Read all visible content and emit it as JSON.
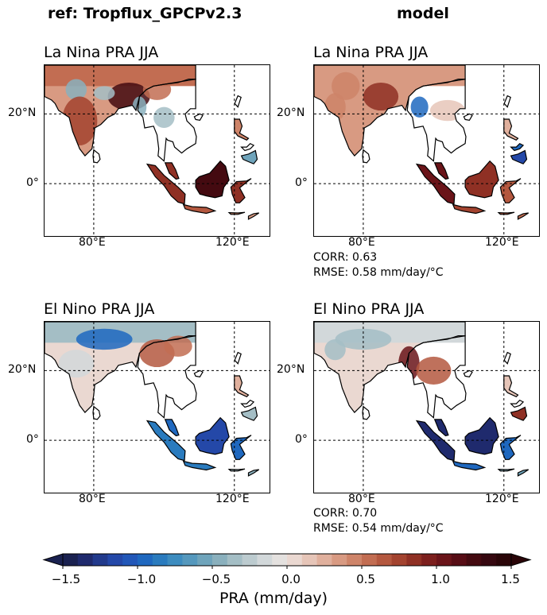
{
  "headers": {
    "reference": "ref: Tropflux_GPCPv2.3",
    "model": "model"
  },
  "chart_data": {
    "type": "heatmap",
    "variable": "PRA",
    "season": "JJA",
    "lon_ticks": [
      "80°E",
      "120°E"
    ],
    "lat_ticks": [
      "20°N",
      "0°"
    ],
    "lon_range": [
      66,
      130
    ],
    "lat_range": [
      -15,
      34
    ],
    "panels": [
      {
        "id": "ref_la_nina",
        "title": "La Nina PRA JJA",
        "source": "ref: Tropflux_GPCPv2.3"
      },
      {
        "id": "model_la_nina",
        "title": "La Nina PRA JJA",
        "source": "model",
        "corr": "CORR: 0.63",
        "rmse": "RMSE: 0.58 mm/day/°C"
      },
      {
        "id": "ref_el_nino",
        "title": "El Nino PRA JJA",
        "source": "ref: Tropflux_GPCPv2.3"
      },
      {
        "id": "model_el_nino",
        "title": "El Nino PRA JJA",
        "source": "model",
        "corr": "CORR: 0.70",
        "rmse": "RMSE: 0.54 mm/day/°C"
      }
    ],
    "colorbar": {
      "label": "PRA (mm/day)",
      "min": -1.5,
      "max": 1.5,
      "step": 0.1,
      "extend": "both",
      "ticks": [
        "−1.5",
        "−1.0",
        "−0.5",
        "0.0",
        "0.5",
        "1.0",
        "1.5"
      ],
      "tick_values": [
        -1.5,
        -1.0,
        -0.5,
        0.0,
        0.5,
        1.0,
        1.5
      ],
      "colors": [
        "#1a2150",
        "#1f2a6d",
        "#223a8c",
        "#2448a8",
        "#2257b8",
        "#1f68bf",
        "#2a7bbe",
        "#3d8cbf",
        "#5598bd",
        "#6fa4bb",
        "#8ab0bd",
        "#a4bec5",
        "#bccbcf",
        "#d2d8da",
        "#e4e1df",
        "#ead8d1",
        "#e6c5b8",
        "#e0b09d",
        "#d89a82",
        "#ce8469",
        "#c26d52",
        "#b4583f",
        "#a3432f",
        "#8f3024",
        "#7c1f1d",
        "#6a1419",
        "#570d15",
        "#440a10",
        "#360810",
        "#2a0508"
      ]
    }
  }
}
